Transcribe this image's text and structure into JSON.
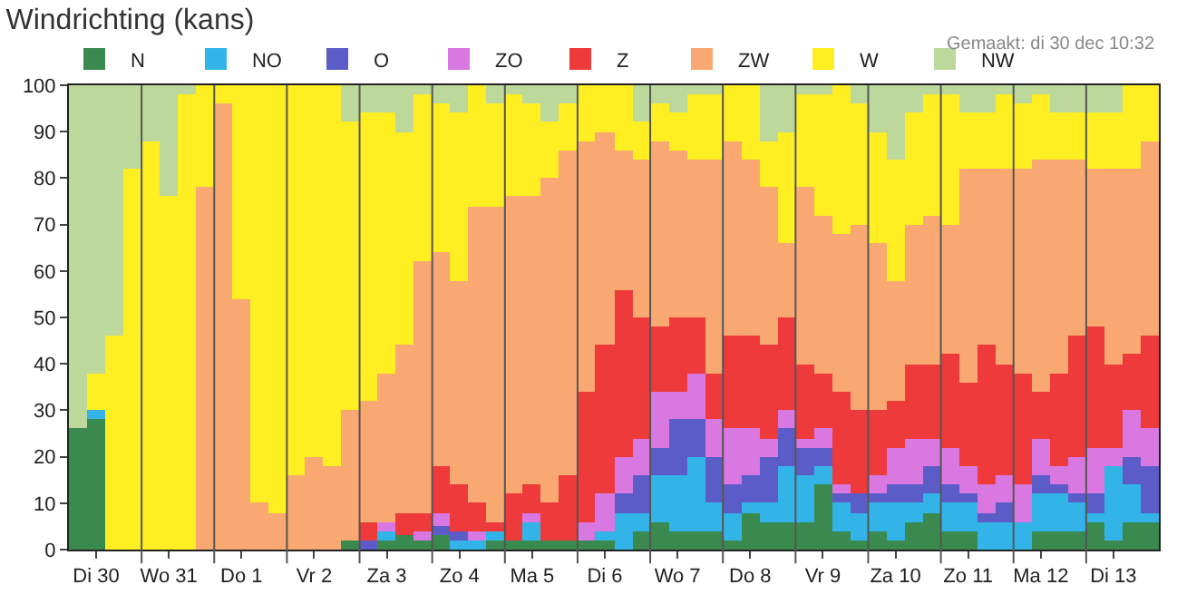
{
  "chart_data": {
    "type": "bar",
    "stacked": true,
    "title": "Windrichting (kans)",
    "annotations": [
      "Gemaakt: di 30 dec 10:32"
    ],
    "categories": [
      null,
      "Di 30",
      null,
      null,
      null,
      "Wo 31",
      null,
      null,
      null,
      "Do 1",
      null,
      null,
      null,
      "Vr 2",
      null,
      null,
      null,
      "Za 3",
      null,
      null,
      null,
      "Zo 4",
      null,
      null,
      null,
      "Ma 5",
      null,
      null,
      null,
      "Di 6",
      null,
      null,
      null,
      "Wo 7",
      null,
      null,
      null,
      "Do 8",
      null,
      null,
      null,
      "Vr 9",
      null,
      null,
      null,
      "Za 10",
      null,
      null,
      null,
      "Zo 11",
      null,
      null,
      null,
      "Ma 12",
      null,
      null,
      null,
      "Di 13",
      null,
      null
    ],
    "ylim": [
      0,
      100
    ],
    "yticks": [
      0,
      10,
      20,
      30,
      40,
      50,
      60,
      70,
      80,
      90,
      100
    ],
    "legend": "top",
    "series": [
      {
        "name": "N",
        "color": "#3a8a50",
        "values": [
          26,
          28,
          0,
          0,
          0,
          0,
          0,
          0,
          0,
          0,
          0,
          0,
          0,
          0,
          0,
          2,
          0,
          2,
          3,
          2,
          3,
          0,
          0,
          2,
          2,
          2,
          2,
          2,
          2,
          2,
          0,
          4,
          6,
          4,
          4,
          4,
          2,
          8,
          6,
          6,
          6,
          14,
          4,
          2,
          4,
          2,
          6,
          8,
          4,
          4,
          0,
          0,
          0,
          4,
          4,
          4,
          6,
          2,
          6,
          6
        ]
      },
      {
        "name": "NO",
        "color": "#33b4e8",
        "values": [
          0,
          2,
          0,
          0,
          0,
          0,
          0,
          0,
          0,
          0,
          0,
          0,
          0,
          0,
          0,
          0,
          0,
          2,
          0,
          0,
          0,
          2,
          2,
          2,
          0,
          4,
          0,
          0,
          0,
          2,
          8,
          4,
          10,
          12,
          16,
          6,
          6,
          2,
          4,
          12,
          10,
          4,
          6,
          6,
          6,
          8,
          4,
          4,
          6,
          6,
          6,
          6,
          6,
          8,
          8,
          6,
          2,
          16,
          8,
          2
        ]
      },
      {
        "name": "O",
        "color": "#5c5cc8",
        "values": [
          0,
          0,
          0,
          0,
          0,
          0,
          0,
          0,
          0,
          0,
          0,
          0,
          0,
          0,
          0,
          0,
          2,
          0,
          0,
          0,
          2,
          2,
          0,
          0,
          0,
          0,
          0,
          0,
          0,
          0,
          4,
          8,
          6,
          12,
          8,
          10,
          6,
          6,
          10,
          8,
          6,
          4,
          2,
          4,
          2,
          4,
          4,
          6,
          4,
          2,
          2,
          4,
          0,
          4,
          2,
          2,
          4,
          0,
          6,
          10
        ]
      },
      {
        "name": "ZO",
        "color": "#d878e0",
        "values": [
          0,
          0,
          0,
          0,
          0,
          0,
          0,
          0,
          0,
          0,
          0,
          0,
          0,
          0,
          0,
          0,
          0,
          2,
          0,
          2,
          3,
          0,
          2,
          0,
          0,
          2,
          0,
          0,
          4,
          8,
          8,
          8,
          12,
          6,
          10,
          8,
          12,
          10,
          4,
          4,
          2,
          4,
          2,
          0,
          4,
          8,
          10,
          6,
          8,
          6,
          6,
          6,
          8,
          8,
          4,
          8,
          10,
          4,
          10,
          8
        ]
      },
      {
        "name": "Z",
        "color": "#ee3a3a",
        "values": [
          0,
          0,
          0,
          0,
          0,
          0,
          0,
          0,
          0,
          0,
          0,
          0,
          0,
          0,
          0,
          0,
          4,
          0,
          5,
          4,
          10,
          10,
          6,
          2,
          10,
          6,
          8,
          14,
          28,
          32,
          36,
          26,
          14,
          16,
          12,
          10,
          20,
          20,
          20,
          20,
          16,
          12,
          20,
          18,
          14,
          10,
          16,
          16,
          20,
          18,
          30,
          24,
          24,
          10,
          20,
          26,
          26,
          18,
          12,
          20
        ]
      },
      {
        "name": "ZW",
        "color": "#f9a872",
        "values": [
          0,
          0,
          0,
          0,
          0,
          0,
          0,
          78,
          96,
          54,
          10,
          8,
          16,
          20,
          18,
          28,
          26,
          32,
          36,
          54,
          46,
          44,
          64,
          68,
          64,
          62,
          70,
          70,
          54,
          46,
          30,
          34,
          40,
          36,
          34,
          46,
          42,
          38,
          34,
          16,
          38,
          34,
          34,
          40,
          36,
          26,
          30,
          32,
          28,
          46,
          38,
          42,
          44,
          50,
          46,
          38,
          34,
          42,
          40,
          42
        ]
      },
      {
        "name": "W",
        "color": "#ffee22",
        "values": [
          0,
          8,
          46,
          82,
          88,
          76,
          98,
          22,
          4,
          46,
          90,
          92,
          84,
          80,
          82,
          62,
          62,
          56,
          46,
          36,
          32,
          36,
          26,
          22,
          22,
          20,
          12,
          10,
          12,
          10,
          14,
          8,
          8,
          8,
          14,
          14,
          12,
          16,
          10,
          24,
          20,
          26,
          32,
          26,
          24,
          26,
          24,
          26,
          28,
          12,
          12,
          16,
          14,
          14,
          10,
          10,
          12,
          12,
          18,
          12
        ]
      },
      {
        "name": "NW",
        "color": "#bcd89a",
        "values": [
          74,
          62,
          54,
          18,
          12,
          24,
          2,
          0,
          0,
          0,
          0,
          0,
          0,
          0,
          0,
          8,
          6,
          6,
          10,
          2,
          4,
          6,
          0,
          4,
          2,
          4,
          8,
          4,
          0,
          0,
          0,
          8,
          4,
          6,
          2,
          2,
          0,
          0,
          12,
          10,
          2,
          2,
          0,
          4,
          10,
          16,
          6,
          2,
          2,
          6,
          6,
          2,
          4,
          2,
          6,
          6,
          6,
          6,
          0,
          0
        ]
      }
    ]
  }
}
